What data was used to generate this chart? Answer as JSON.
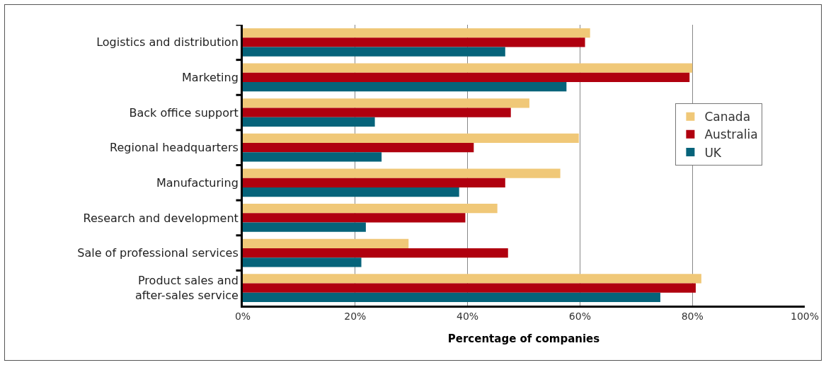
{
  "chart_data": {
    "type": "bar",
    "orientation": "horizontal",
    "xlabel": "Percentage of companies",
    "categories": [
      "Logistics and distribution",
      "Marketing",
      "Back office support",
      "Regional headquarters",
      "Manufacturing",
      "Research and development",
      "Sale of professional services",
      "Product sales and after-sales service"
    ],
    "series": [
      {
        "name": "Canada",
        "color": "#f0c878",
        "values": [
          61.8,
          80,
          51,
          59.8,
          56.5,
          45.3,
          29.5,
          81.6
        ]
      },
      {
        "name": "Australia",
        "color": "#b0000f",
        "values": [
          60.9,
          79.5,
          47.7,
          41.1,
          46.7,
          39.6,
          47.2,
          80.6
        ]
      },
      {
        "name": "UK",
        "color": "#06637a",
        "values": [
          46.7,
          57.6,
          23.5,
          24.7,
          38.5,
          21.9,
          21.1,
          74.3
        ]
      }
    ],
    "xlim": [
      0,
      100
    ],
    "xticks": [
      {
        "value": 0,
        "label": "0%"
      },
      {
        "value": 20,
        "label": "20%"
      },
      {
        "value": 40,
        "label": "40%"
      },
      {
        "value": 60,
        "label": "60%"
      },
      {
        "value": 80,
        "label": "80%"
      },
      {
        "value": 100,
        "label": "100%"
      }
    ],
    "grid": "x",
    "legend": "right"
  }
}
